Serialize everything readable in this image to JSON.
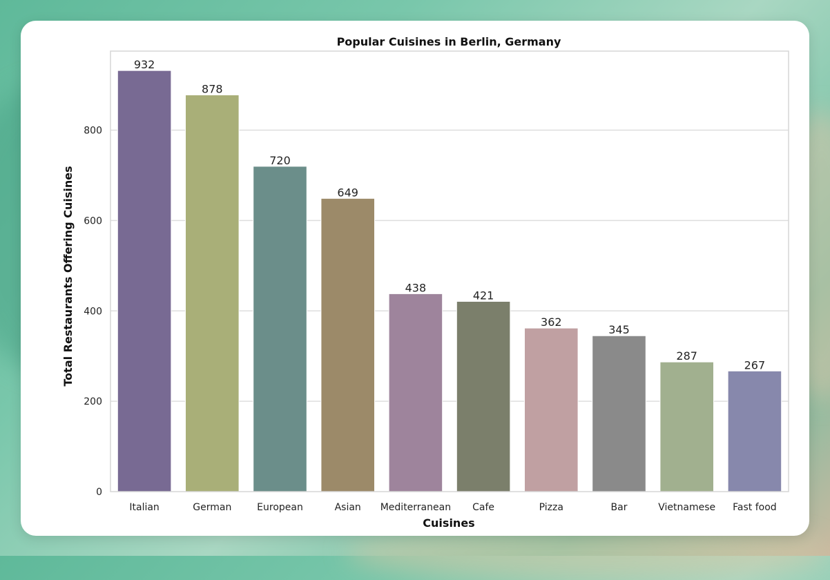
{
  "chart_data": {
    "type": "bar",
    "title": "Popular Cuisines in Berlin, Germany",
    "xlabel": "Cuisines",
    "ylabel": "Total Restaurants Offering Cuisines",
    "categories": [
      "Italian",
      "German",
      "European",
      "Asian",
      "Mediterranean",
      "Cafe",
      "Pizza",
      "Bar",
      "Vietnamese",
      "Fast food"
    ],
    "values": [
      932,
      878,
      720,
      649,
      438,
      421,
      362,
      345,
      287,
      267
    ],
    "value_labels": [
      "932",
      "878",
      "720",
      "649",
      "438",
      "421",
      "362",
      "345",
      "287",
      "267"
    ],
    "colors": [
      "#786a93",
      "#a9af78",
      "#6b8e8a",
      "#9c8a69",
      "#9e849c",
      "#7b7f6b",
      "#c0a0a2",
      "#8a8a8a",
      "#a1b08f",
      "#8788ac"
    ],
    "ylim": [
      0,
      975
    ],
    "yticks": [
      0,
      200,
      400,
      600,
      800
    ],
    "ytick_labels": [
      "0",
      "200",
      "400",
      "600",
      "800"
    ],
    "grid": true,
    "legend": "none"
  }
}
